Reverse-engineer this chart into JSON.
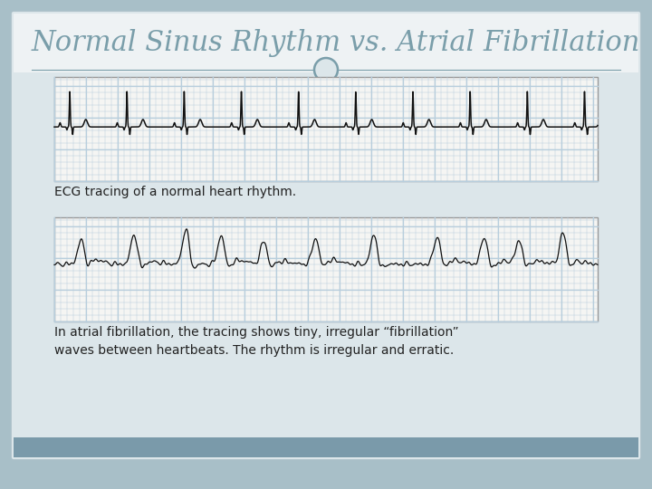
{
  "title": "Normal Sinus Rhythm vs. Atrial Fibrillation",
  "title_color": "#7a9eaa",
  "bg_color": "#a8bfc8",
  "card_color": "#dce6ea",
  "ecg_bg_color": "#f5f5f3",
  "ecg_grid_color": "#b8cedd",
  "ecg_line_color": "#111111",
  "caption1": "ECG tracing of a normal heart rhythm.",
  "caption2": "In atrial fibrillation, the tracing shows tiny, irregular “fibrillation”\nwaves between heartbeats. The rhythm is irregular and erratic.",
  "caption_color": "#222222",
  "bottom_bar_color": "#7a9aaa",
  "title_fontsize": 22,
  "caption_fontsize": 10
}
